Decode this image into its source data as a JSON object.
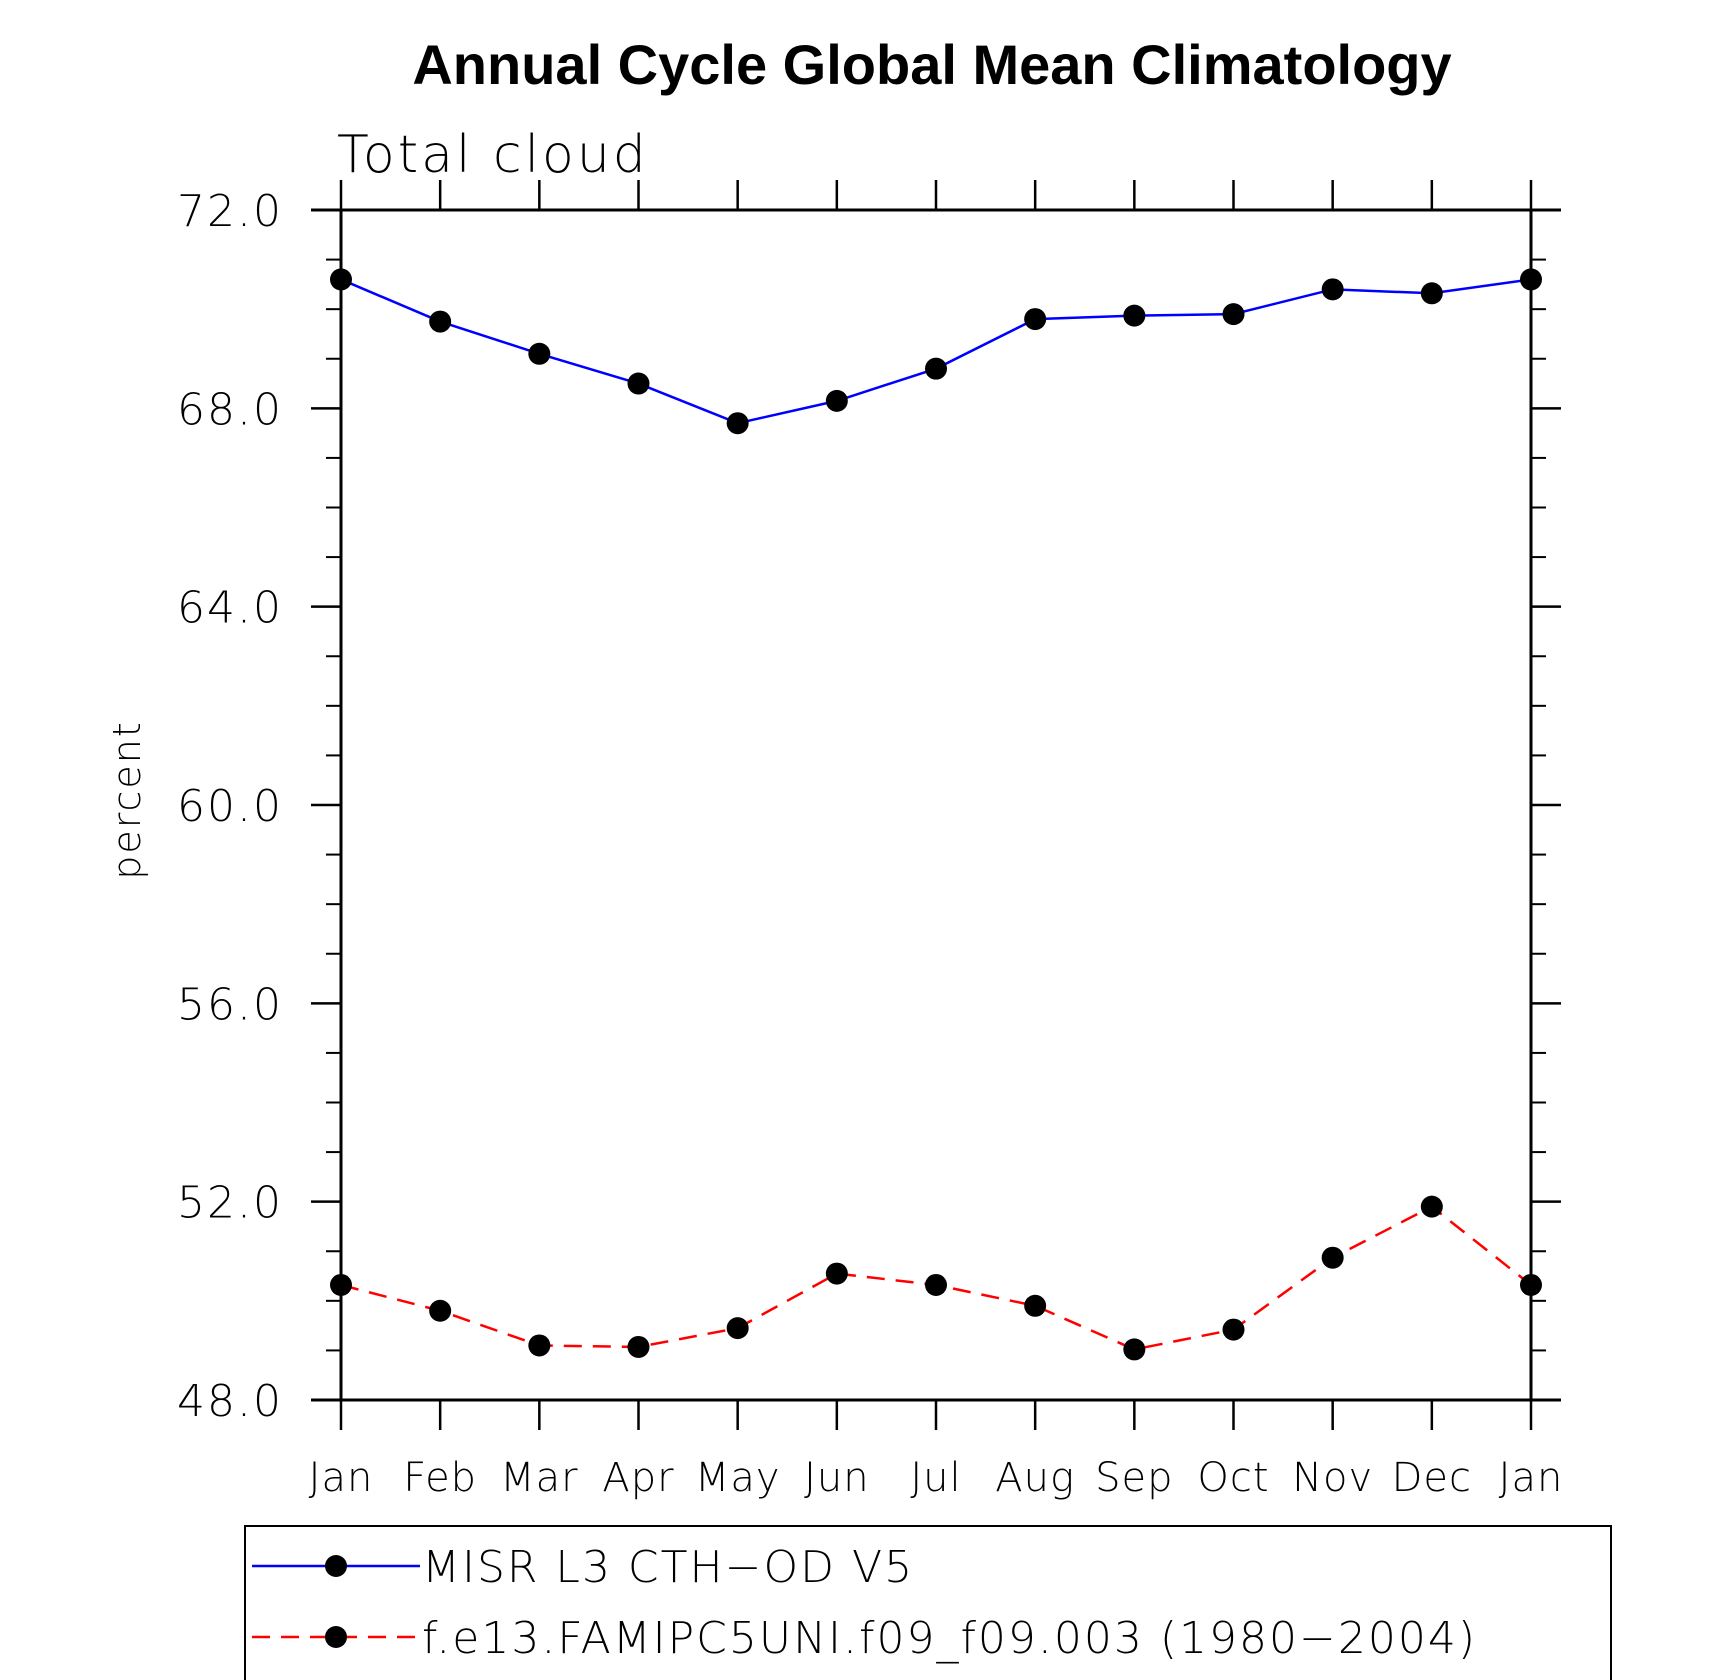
{
  "chart_data": {
    "type": "line",
    "title": "Annual Cycle Global Mean Climatology",
    "subtitle": "Total cloud",
    "ylabel": "percent",
    "xlabel": "",
    "ylim": [
      48.0,
      72.0
    ],
    "y_major_ticks": [
      48.0,
      52.0,
      56.0,
      60.0,
      64.0,
      68.0,
      72.0
    ],
    "y_tick_labels": [
      "48.0",
      "52.0",
      "56.0",
      "60.0",
      "64.0",
      "68.0",
      "72.0"
    ],
    "y_minor_step": 1.0,
    "categories": [
      "Jan",
      "Feb",
      "Mar",
      "Apr",
      "May",
      "Jun",
      "Jul",
      "Aug",
      "Sep",
      "Oct",
      "Nov",
      "Dec",
      "Jan"
    ],
    "series": [
      {
        "name": "MISR L3 CTH-OD V5",
        "color": "#0000ff",
        "dash": "solid",
        "marker": "filled-circle",
        "values": [
          70.6,
          69.75,
          69.1,
          68.5,
          67.7,
          68.15,
          68.8,
          69.8,
          69.87,
          69.9,
          70.4,
          70.32,
          70.6
        ]
      },
      {
        "name": "f.e13.FAMIPC5UNI.f09_f09.003 (1980−2004)",
        "color": "#ff0000",
        "dash": "dashed",
        "marker": "filled-circle",
        "values": [
          50.32,
          49.8,
          49.1,
          49.07,
          49.45,
          50.55,
          50.32,
          49.9,
          49.02,
          49.42,
          50.87,
          51.9,
          50.32
        ]
      }
    ],
    "legend": {
      "position": "bottom",
      "labels": [
        "MISR L3 CTH−OD V5",
        "f.e13.FAMIPC5UNI.f09_f09.003 (1980−2004)"
      ]
    },
    "marker_color": "#000000",
    "grid": false
  }
}
